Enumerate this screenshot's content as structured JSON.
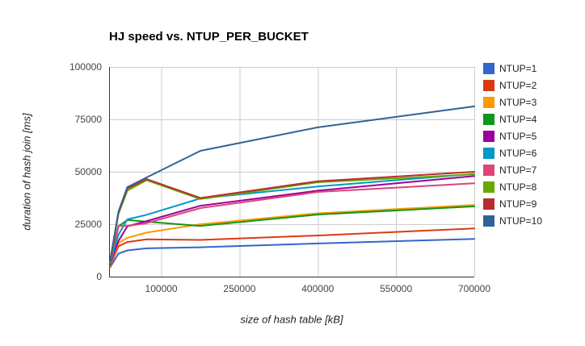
{
  "chart_data": {
    "type": "line",
    "title": "HJ speed vs. NTUP_PER_BUCKET",
    "xlabel": "size of hash table [kB]",
    "ylabel": "duration of hash join [ms]",
    "xlim": [
      0,
      700000
    ],
    "ylim": [
      0,
      100000
    ],
    "x_ticks": [
      100000,
      250000,
      400000,
      550000,
      700000
    ],
    "y_ticks": [
      0,
      25000,
      50000,
      75000,
      100000
    ],
    "grid": true,
    "legend_position": "right",
    "background": "#ffffff",
    "axis_color": "#333333",
    "grid_color": "#cccccc",
    "tick_label_color": "#444444",
    "x": [
      2000,
      18000,
      35000,
      72000,
      175000,
      400000,
      700000
    ],
    "series": [
      {
        "name": "NTUP=1",
        "color": "#3366CC",
        "values": [
          4500,
          11000,
          12500,
          13500,
          14000,
          15800,
          18000
        ]
      },
      {
        "name": "NTUP=2",
        "color": "#DC3912",
        "values": [
          5000,
          14500,
          16500,
          17800,
          17500,
          19600,
          23000
        ]
      },
      {
        "name": "NTUP=3",
        "color": "#FF9900",
        "values": [
          5200,
          16000,
          18500,
          21000,
          25000,
          30200,
          34200
        ]
      },
      {
        "name": "NTUP=4",
        "color": "#109618",
        "values": [
          5500,
          24000,
          27000,
          26200,
          24200,
          29600,
          33500
        ]
      },
      {
        "name": "NTUP=5",
        "color": "#990099",
        "values": [
          6000,
          17000,
          24000,
          26500,
          33800,
          41000,
          48000
        ]
      },
      {
        "name": "NTUP=6",
        "color": "#0099C6",
        "values": [
          6500,
          20000,
          27300,
          29500,
          37300,
          43000,
          49000
        ]
      },
      {
        "name": "NTUP=7",
        "color": "#DD4477",
        "values": [
          7000,
          24200,
          24200,
          25500,
          32700,
          40400,
          44500
        ]
      },
      {
        "name": "NTUP=8",
        "color": "#66AA00",
        "values": [
          7000,
          30000,
          41000,
          46000,
          37000,
          45000,
          48800
        ]
      },
      {
        "name": "NTUP=9",
        "color": "#B82E2E",
        "values": [
          7500,
          30500,
          42000,
          46500,
          37500,
          45500,
          50000
        ]
      },
      {
        "name": "NTUP=10",
        "color": "#316395",
        "values": [
          7500,
          31000,
          42700,
          47300,
          60000,
          71200,
          81200
        ]
      }
    ]
  }
}
